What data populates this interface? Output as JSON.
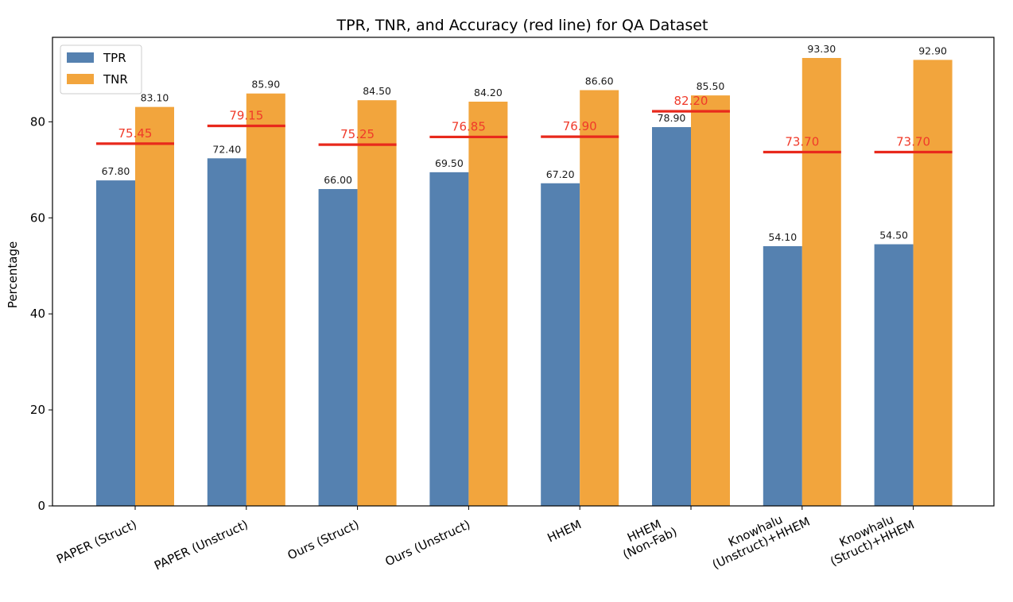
{
  "chart_data": {
    "type": "bar",
    "title": "TPR, TNR, and Accuracy (red line) for QA Dataset",
    "xlabel": "",
    "ylabel": "Percentage",
    "ylim": [
      0,
      97.6
    ],
    "yticks": [
      0,
      20,
      40,
      60,
      80
    ],
    "categories": [
      [
        "PAPER (Struct)"
      ],
      [
        "PAPER (Unstruct)"
      ],
      [
        "Ours (Struct)"
      ],
      [
        "Ours (Unstruct)"
      ],
      [
        "HHEM"
      ],
      [
        "HHEM",
        "(Non-Fab)"
      ],
      [
        "Knowhalu",
        "(Unstruct)+HHEM"
      ],
      [
        "Knowhalu",
        "(Struct)+HHEM"
      ]
    ],
    "series": [
      {
        "name": "TPR",
        "color": "#5581b0",
        "values": [
          67.8,
          72.4,
          66.0,
          69.5,
          67.2,
          78.9,
          54.1,
          54.5
        ]
      },
      {
        "name": "TNR",
        "color": "#f2a53d",
        "values": [
          83.1,
          85.9,
          84.5,
          84.2,
          86.6,
          85.5,
          93.3,
          92.9
        ]
      }
    ],
    "accuracy": {
      "color": "#e8291c",
      "label_color": "#f03a2a",
      "values": [
        75.45,
        79.15,
        75.25,
        76.85,
        76.9,
        82.2,
        73.7,
        73.7
      ]
    },
    "legend": {
      "placement": "upper-left"
    },
    "grid": false
  }
}
